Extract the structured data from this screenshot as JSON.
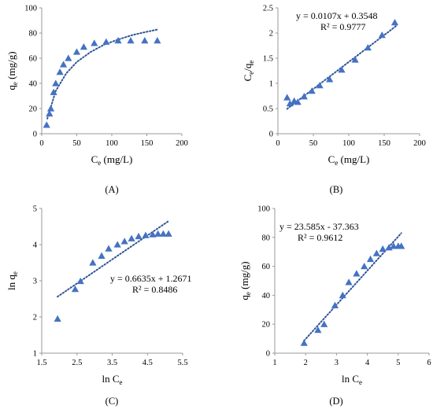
{
  "chart_data": [
    {
      "type": "scatter",
      "panel_label": "(A)",
      "xlabel": {
        "main": "C",
        "sub": "e",
        "suffix": " (mg/L)"
      },
      "ylabel": {
        "main": "q",
        "sub": "e",
        "suffix": " (mg/g)"
      },
      "xlim": [
        0,
        200
      ],
      "ylim": [
        0,
        100
      ],
      "xticks": [
        0,
        50,
        100,
        150,
        200
      ],
      "yticks": [
        0,
        20,
        40,
        60,
        80,
        100
      ],
      "grid": false,
      "series": [
        {
          "marker": "triangle",
          "color": "#4472C4",
          "x": [
            7,
            11,
            13,
            17,
            20,
            26,
            31,
            38,
            50,
            60,
            75,
            92,
            109,
            127,
            147,
            165
          ],
          "y": [
            7,
            16,
            20,
            33,
            40,
            49,
            55,
            60,
            65,
            69,
            72,
            73,
            74,
            74,
            74,
            74
          ]
        }
      ],
      "trendline": {
        "kind": "curve",
        "x": [
          8,
          20,
          35,
          50,
          70,
          90,
          110,
          130,
          150,
          167
        ],
        "y": [
          12,
          34,
          48,
          57,
          65,
          71,
          75,
          78.5,
          81,
          83
        ]
      }
    },
    {
      "type": "scatter",
      "panel_label": "(B)",
      "xlabel": {
        "main": "C",
        "sub": "e",
        "suffix": " (mg/L)"
      },
      "ylabel": {
        "main": "C",
        "sub": "e",
        "mid": "/q",
        "sub2": "e"
      },
      "xlim": [
        0,
        200
      ],
      "ylim": [
        0,
        2.5
      ],
      "xticks": [
        0,
        50,
        100,
        150,
        200
      ],
      "yticks": [
        0,
        0.5,
        1,
        1.5,
        2,
        2.5
      ],
      "ytick_labels": [
        "0",
        "0.5",
        "1",
        "1.5",
        "2",
        "2.5"
      ],
      "grid": false,
      "equation": "y = 0.0107x + 0.3548",
      "r2": "R² = 0.9777",
      "series": [
        {
          "marker": "triangle",
          "color": "#4472C4",
          "x": [
            13,
            17,
            23,
            28,
            37,
            48,
            59,
            73,
            90,
            109,
            127,
            147,
            165
          ],
          "y": [
            0.72,
            0.6,
            0.65,
            0.63,
            0.74,
            0.85,
            0.96,
            1.08,
            1.27,
            1.47,
            1.71,
            1.96,
            2.21
          ]
        }
      ],
      "trendline": {
        "kind": "line",
        "slope": 0.0107,
        "intercept": 0.3548,
        "x_range": [
          13,
          167
        ]
      }
    },
    {
      "type": "scatter",
      "panel_label": "(C)",
      "xlabel": {
        "main": "ln C",
        "sub": "e",
        "suffix": ""
      },
      "ylabel": {
        "main": "ln q",
        "sub": "e",
        "suffix": ""
      },
      "xlim": [
        1.5,
        5.5
      ],
      "ylim": [
        1,
        5
      ],
      "xticks": [
        1.5,
        2.5,
        3.5,
        4.5,
        5.5
      ],
      "yticks": [
        1,
        2,
        3,
        4,
        5
      ],
      "grid": false,
      "equation": "y = 0.6635x + 1.2671",
      "r2": "R² = 0.8486",
      "series": [
        {
          "marker": "triangle",
          "color": "#4472C4",
          "x": [
            1.95,
            2.45,
            2.6,
            2.95,
            3.2,
            3.4,
            3.65,
            3.85,
            4.05,
            4.25,
            4.45,
            4.65,
            4.8,
            4.95,
            5.1
          ],
          "y": [
            1.95,
            2.77,
            2.99,
            3.5,
            3.69,
            3.89,
            4.0,
            4.09,
            4.17,
            4.23,
            4.26,
            4.28,
            4.3,
            4.3,
            4.3
          ]
        }
      ],
      "trendline": {
        "kind": "line",
        "slope": 0.6635,
        "intercept": 1.2671,
        "x_range": [
          1.95,
          5.1
        ]
      }
    },
    {
      "type": "scatter",
      "panel_label": "(D)",
      "xlabel": {
        "main": "ln C",
        "sub": "e",
        "suffix": ""
      },
      "ylabel": {
        "main": "q",
        "sub": "e",
        "suffix": " (mg/g)"
      },
      "xlim": [
        1,
        6
      ],
      "ylim": [
        0,
        100
      ],
      "xticks": [
        1,
        2,
        3,
        4,
        5,
        6
      ],
      "yticks": [
        0,
        20,
        40,
        60,
        80,
        100
      ],
      "grid": false,
      "equation": "y = 23.585x - 37.363",
      "r2": "R² = 0.9612",
      "series": [
        {
          "marker": "triangle",
          "color": "#4472C4",
          "x": [
            1.95,
            2.4,
            2.6,
            2.95,
            3.2,
            3.4,
            3.65,
            3.9,
            4.1,
            4.3,
            4.5,
            4.7,
            4.85,
            5.0,
            5.1
          ],
          "y": [
            7,
            16,
            20,
            33,
            40,
            49,
            55,
            60,
            65,
            69,
            72,
            73,
            74,
            74,
            74
          ]
        }
      ],
      "trendline": {
        "kind": "line",
        "slope": 23.585,
        "intercept": -37.363,
        "x_range": [
          1.95,
          5.1
        ]
      }
    }
  ]
}
